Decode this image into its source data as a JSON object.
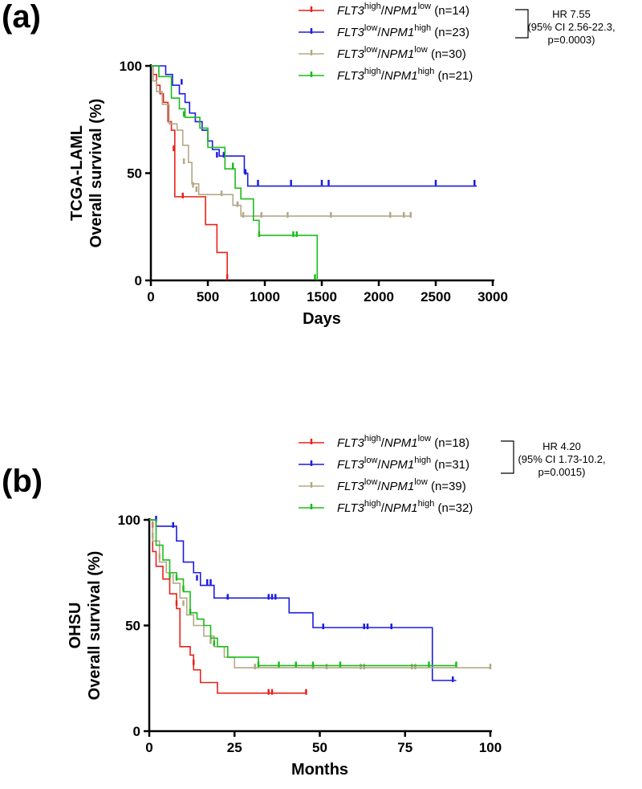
{
  "chart_data": [
    {
      "type": "line",
      "panel_label": "(a)",
      "ylabel_line1": "TCGA-LAML",
      "ylabel_line2": "Overall survival (%)",
      "xlabel": "Days",
      "xlim": [
        0,
        3000
      ],
      "ylim": [
        0,
        100
      ],
      "xticks": [
        0,
        500,
        1000,
        1500,
        2000,
        2500,
        3000
      ],
      "yticks": [
        0,
        50,
        100
      ],
      "hazard_ratio": {
        "line1": "HR 7.55",
        "line2": "(95% CI 2.56-22.3,",
        "line3": "p=0.0003)"
      },
      "series": [
        {
          "gene1": "FLT3",
          "sup1": "high",
          "gene2": "NPM1",
          "sup2": "low",
          "n": "(n=14)",
          "color": "#e8221c",
          "x": [
            0,
            20,
            50,
            80,
            110,
            150,
            180,
            210,
            400,
            480,
            580,
            670
          ],
          "y": [
            100,
            96,
            91,
            87,
            83,
            74,
            70,
            39,
            39,
            26,
            13,
            0
          ],
          "censored": [
            [
              200,
              61
            ],
            [
              280,
              39
            ],
            [
              670,
              1
            ]
          ]
        },
        {
          "gene1": "FLT3",
          "sup1": "low",
          "gene2": "NPM1",
          "sup2": "high",
          "n": "(n=23)",
          "color": "#1c1ce0",
          "x": [
            0,
            130,
            190,
            250,
            300,
            340,
            390,
            450,
            500,
            540,
            600,
            700,
            820,
            850,
            2860
          ],
          "y": [
            100,
            96,
            91,
            87,
            83,
            78,
            74,
            70,
            65,
            61,
            58,
            58,
            50,
            44,
            44
          ],
          "censored": [
            [
              270,
              92
            ],
            [
              580,
              58
            ],
            [
              640,
              58
            ],
            [
              830,
              50
            ],
            [
              940,
              45
            ],
            [
              1230,
              45
            ],
            [
              1500,
              45
            ],
            [
              1560,
              45
            ],
            [
              2500,
              45
            ],
            [
              2840,
              45
            ]
          ]
        },
        {
          "gene1": "FLT3",
          "sup1": "low",
          "gene2": "NPM1",
          "sup2": "low",
          "n": "(n=30)",
          "color": "#b5a888",
          "x": [
            0,
            20,
            50,
            100,
            160,
            230,
            280,
            330,
            360,
            420,
            580,
            720,
            790,
            2280
          ],
          "y": [
            100,
            93,
            88,
            82,
            73,
            70,
            63,
            55,
            45,
            40,
            40,
            35,
            30,
            30
          ],
          "censored": [
            [
              290,
              55
            ],
            [
              370,
              44
            ],
            [
              400,
              42
            ],
            [
              620,
              40
            ],
            [
              760,
              35
            ],
            [
              810,
              30
            ],
            [
              970,
              30
            ],
            [
              1200,
              30
            ],
            [
              1580,
              30
            ],
            [
              2100,
              30
            ],
            [
              2220,
              30
            ],
            [
              2280,
              30
            ]
          ]
        },
        {
          "gene1": "FLT3",
          "sup1": "high",
          "gene2": "NPM1",
          "sup2": "high",
          "n": "(n=21)",
          "color": "#1bbd1b",
          "x": [
            0,
            70,
            180,
            250,
            300,
            430,
            500,
            650,
            740,
            790,
            900,
            950,
            1460
          ],
          "y": [
            100,
            95,
            85,
            80,
            76,
            71,
            62,
            52,
            43,
            38,
            28,
            21,
            0
          ],
          "censored": [
            [
              290,
              77
            ],
            [
              720,
              53
            ],
            [
              950,
              21
            ],
            [
              1250,
              21
            ],
            [
              1280,
              21
            ],
            [
              1440,
              1
            ]
          ]
        }
      ]
    },
    {
      "type": "line",
      "panel_label": "(b)",
      "ylabel_line1": "OHSU",
      "ylabel_line2": "Overall survival (%)",
      "xlabel": "Months",
      "xlim": [
        0,
        100
      ],
      "ylim": [
        0,
        100
      ],
      "xticks": [
        0,
        25,
        50,
        75,
        100
      ],
      "yticks": [
        0,
        50,
        100
      ],
      "hazard_ratio": {
        "line1": "HR 4.20",
        "line2": "(95% CI 1.73-10.2,",
        "line3": "p=0.0015)"
      },
      "series": [
        {
          "gene1": "FLT3",
          "sup1": "high",
          "gene2": "NPM1",
          "sup2": "low",
          "n": "(n=18)",
          "color": "#e8221c",
          "x": [
            0,
            1,
            2,
            4,
            6,
            8,
            9,
            12,
            13,
            15,
            20,
            46
          ],
          "y": [
            100,
            85,
            78,
            72,
            65,
            58,
            40,
            36,
            29,
            23,
            18,
            18
          ],
          "censored": [
            [
              1,
              97
            ],
            [
              8,
              60
            ],
            [
              13,
              32
            ],
            [
              35,
              18
            ],
            [
              36,
              18
            ],
            [
              46,
              18
            ]
          ]
        },
        {
          "gene1": "FLT3",
          "sup1": "low",
          "gene2": "NPM1",
          "sup2": "high",
          "n": "(n=31)",
          "color": "#1c1ce0",
          "x": [
            0,
            2,
            8,
            10,
            13,
            15,
            19,
            41,
            48,
            83,
            90
          ],
          "y": [
            100,
            97,
            90,
            80,
            75,
            69,
            63,
            56,
            49,
            24,
            24
          ],
          "censored": [
            [
              2,
              100
            ],
            [
              7,
              97
            ],
            [
              14,
              72
            ],
            [
              17,
              70
            ],
            [
              18,
              70
            ],
            [
              23,
              63
            ],
            [
              35,
              63
            ],
            [
              36,
              63
            ],
            [
              37,
              63
            ],
            [
              51,
              49
            ],
            [
              63,
              49
            ],
            [
              64,
              49
            ],
            [
              71,
              49
            ],
            [
              89,
              24
            ]
          ]
        },
        {
          "gene1": "FLT3",
          "sup1": "low",
          "gene2": "NPM1",
          "sup2": "low",
          "n": "(n=39)",
          "color": "#b5a888",
          "x": [
            0,
            1,
            3,
            5,
            7,
            9,
            11,
            13,
            16,
            19,
            22,
            25,
            100
          ],
          "y": [
            100,
            90,
            80,
            75,
            70,
            63,
            55,
            50,
            45,
            40,
            35,
            30,
            30
          ],
          "censored": [
            [
              1,
              92
            ],
            [
              3,
              82
            ],
            [
              10,
              60
            ],
            [
              18,
              42
            ],
            [
              31,
              30
            ],
            [
              48,
              30
            ],
            [
              52,
              30
            ],
            [
              62,
              30
            ],
            [
              63,
              30
            ],
            [
              77,
              30
            ],
            [
              78,
              30
            ],
            [
              100,
              30
            ]
          ]
        },
        {
          "gene1": "FLT3",
          "sup1": "high",
          "gene2": "NPM1",
          "sup2": "high",
          "n": "(n=32)",
          "color": "#1bbd1b",
          "x": [
            0,
            2,
            4,
            6,
            8,
            10,
            12,
            14,
            16,
            18,
            20,
            23,
            32,
            90
          ],
          "y": [
            100,
            88,
            81,
            75,
            72,
            66,
            56,
            53,
            50,
            44,
            40,
            35,
            31,
            31
          ],
          "censored": [
            [
              6,
              73
            ],
            [
              8,
              72
            ],
            [
              10,
              67
            ],
            [
              12,
              56
            ],
            [
              19,
              41
            ],
            [
              32,
              31
            ],
            [
              38,
              31
            ],
            [
              43,
              31
            ],
            [
              48,
              31
            ],
            [
              56,
              31
            ],
            [
              82,
              31
            ],
            [
              90,
              31
            ]
          ]
        }
      ]
    }
  ]
}
